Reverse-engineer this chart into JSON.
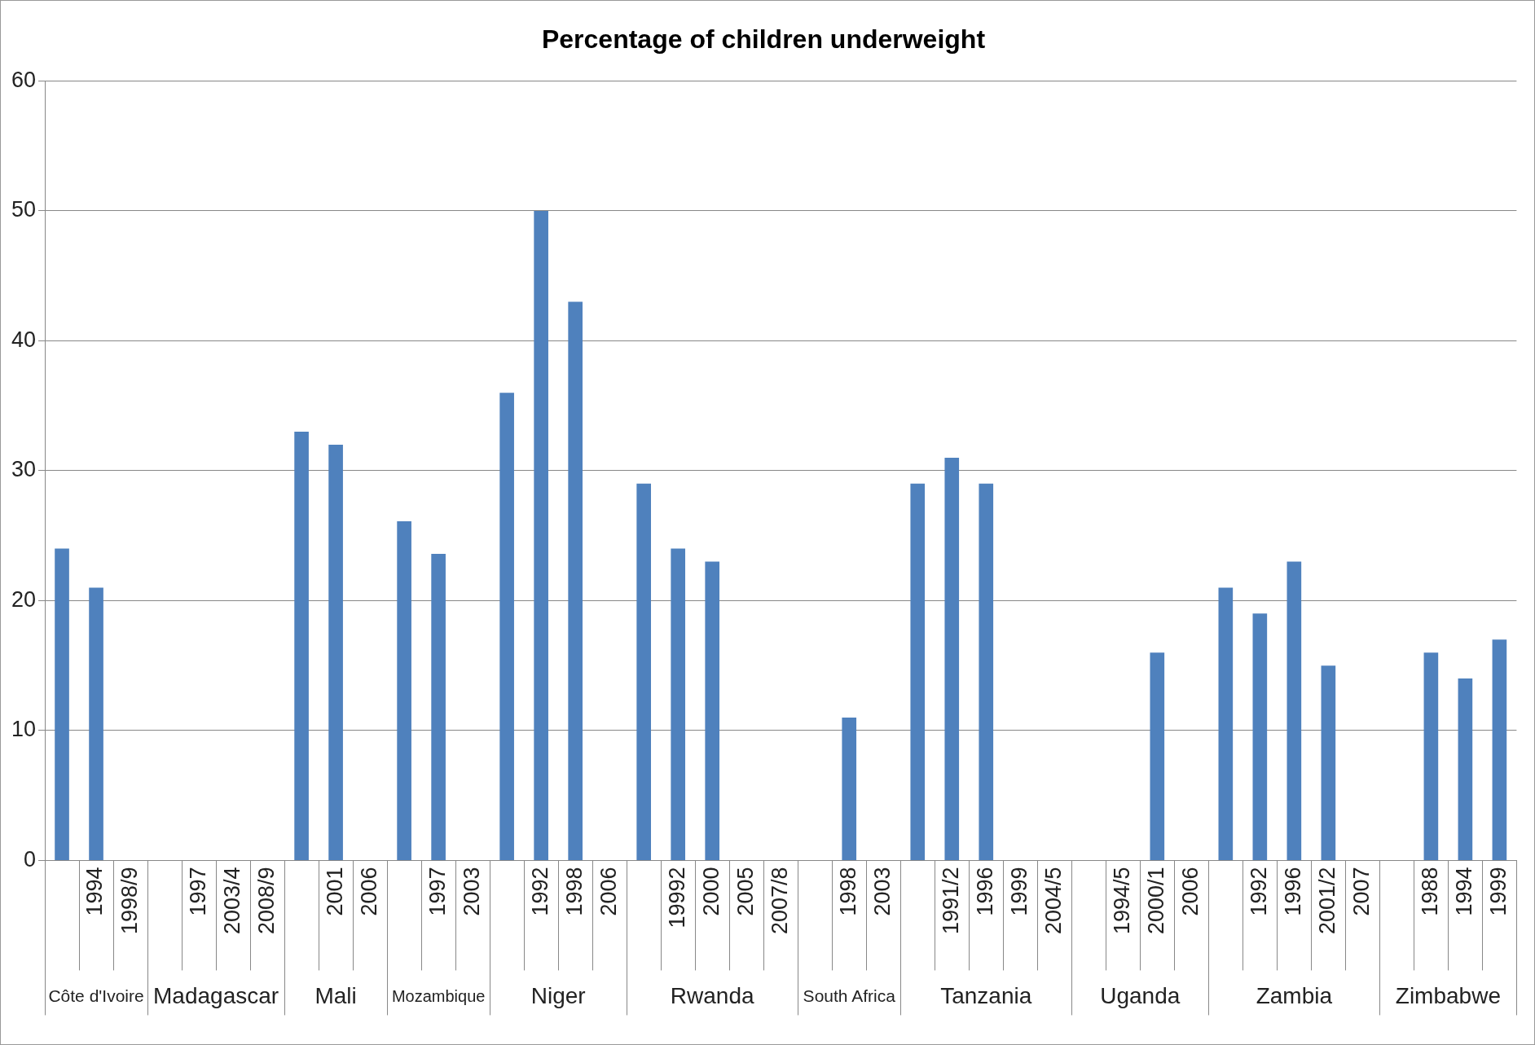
{
  "chart_data": {
    "type": "bar",
    "title": "Percentage of children underweight",
    "categories": [
      null,
      "1994",
      "1998/9",
      null,
      "1997",
      "2003/4",
      "2008/9",
      null,
      "2001",
      "2006",
      null,
      "1997",
      "2003",
      null,
      "1992",
      "1998",
      "2006",
      null,
      "19992",
      "2000",
      "2005",
      "2007/8",
      null,
      "1998",
      "2003",
      null,
      "1991/2",
      "1996",
      "1999",
      "2004/5",
      null,
      "1994/5",
      "2000/1",
      "2006",
      null,
      "1992",
      "1996",
      "2001/2",
      "2007",
      null,
      "1988",
      "1994",
      "1999"
    ],
    "values": [
      24,
      21,
      null,
      null,
      null,
      null,
      null,
      33,
      32,
      null,
      26.1,
      23.6,
      null,
      36,
      50,
      43,
      null,
      29,
      24,
      23,
      null,
      null,
      null,
      11,
      null,
      29,
      31,
      29,
      null,
      null,
      null,
      null,
      16,
      null,
      21,
      19,
      23,
      15,
      null,
      null,
      16,
      14,
      17
    ],
    "color": "#4f81bd",
    "annotations": [
      "Côte d'Ivoire",
      "Madagascar",
      "Mali",
      "Mozambique",
      "Niger",
      "Rwanda",
      "South Africa",
      "Tanzania",
      "Uganda",
      "Zambia",
      "Zimbabwe"
    ],
    "ylim": [
      0,
      60
    ],
    "yticks": [
      0,
      10,
      20,
      30,
      40,
      50,
      60
    ],
    "grid": "y",
    "legend": false
  }
}
